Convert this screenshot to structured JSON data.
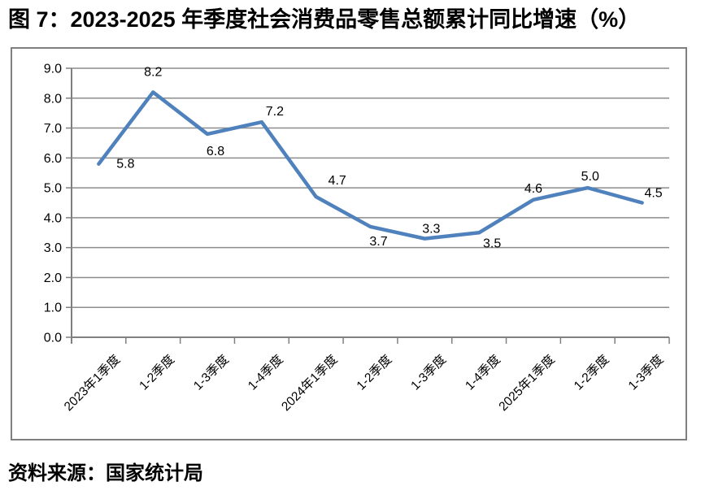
{
  "title": "图 7：2023-2025 年季度社会消费品零售总额累计同比增速（%）",
  "source": "资料来源：国家统计局",
  "chart_data": {
    "type": "line",
    "title": "2023-2025 年季度社会消费品零售总额累计同比增速（%）",
    "categories": [
      "2023年1季度",
      "1-2季度",
      "1-3季度",
      "1-4季度",
      "2024年1季度",
      "1-2季度",
      "1-3季度",
      "1-4季度",
      "2025年1季度",
      "1-2季度",
      "1-3季度"
    ],
    "values": [
      5.8,
      8.2,
      6.8,
      7.2,
      4.7,
      3.7,
      3.3,
      3.5,
      4.6,
      5.0,
      4.5
    ],
    "data_labels": [
      "5.8",
      "8.2",
      "6.8",
      "7.2",
      "4.7",
      "3.7",
      "3.3",
      "3.5",
      "4.6",
      "5.0",
      "4.5"
    ],
    "xlabel": "",
    "ylabel": "",
    "ylim": [
      0.0,
      9.0
    ],
    "ytick_step": 1.0,
    "ytick_labels": [
      "0.0",
      "1.0",
      "2.0",
      "3.0",
      "4.0",
      "5.0",
      "6.0",
      "7.0",
      "8.0",
      "9.0"
    ],
    "grid": "horizontal",
    "legend": "none",
    "line_color": "#4f81bd",
    "gridline_color": "#8c8c8c",
    "axis_color": "#808080",
    "text_color": "#000000"
  }
}
